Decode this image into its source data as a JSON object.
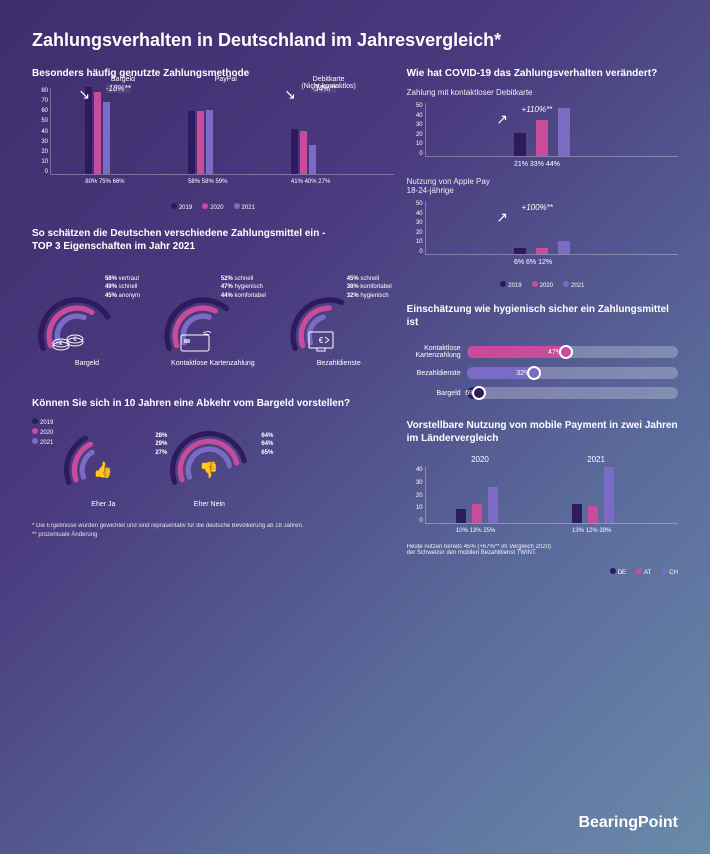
{
  "colors": {
    "c2019": "#2d1b5e",
    "c2020": "#c94b9b",
    "c2021": "#7a6bc4",
    "track": "#d0d0d8"
  },
  "header": "Zahlungsverhalten in Deutschland im Jahresvergleich*",
  "s1": {
    "title": "Besonders häufig genutzte Zahlungsmethode",
    "cats": [
      "Bargeld",
      "PayPal",
      "Debitkarte\n(Nicht-kontaktlos)"
    ],
    "ymax": 80,
    "ystep": 10,
    "data": [
      [
        80,
        75,
        66
      ],
      [
        58,
        58,
        59
      ],
      [
        41,
        40,
        27
      ]
    ],
    "changes": [
      "-18%**",
      "",
      "-34%**"
    ]
  },
  "legend": {
    "y2019": "2019",
    "y2020": "2020",
    "y2021": "2021"
  },
  "s2": {
    "title": "So schätzen die Deutschen verschiedene Zahlungsmittel ein -\nTOP 3 Eigenschaften im Jahr 2021",
    "items": [
      {
        "name": "Bargeld",
        "props": [
          {
            "v": 58,
            "t": "vertraut"
          },
          {
            "v": 49,
            "t": "schnell"
          },
          {
            "v": 45,
            "t": "anonym"
          }
        ],
        "icon": "coins"
      },
      {
        "name": "Kontaktlose Kartenzahlung",
        "props": [
          {
            "v": 52,
            "t": "schnell"
          },
          {
            "v": 47,
            "t": "hygienisch"
          },
          {
            "v": 44,
            "t": "komfortabel"
          }
        ],
        "icon": "card"
      },
      {
        "name": "Bezahldienste",
        "props": [
          {
            "v": 45,
            "t": "schnell"
          },
          {
            "v": 38,
            "t": "komfortabel"
          },
          {
            "v": 32,
            "t": "hygienisch"
          }
        ],
        "icon": "monitor"
      }
    ]
  },
  "s3": {
    "title": "Wie hat COVID-19 das Zahlungsverhalten verändert?",
    "sub1": "Zahlung mit kontaktloser Debitkarte",
    "c1": {
      "ymax": 50,
      "ystep": 10,
      "vals": [
        21,
        33,
        44
      ],
      "change": "+110%**"
    },
    "sub2": "Nutzung von Apple Pay\n18-24-jährige",
    "c2": {
      "ymax": 50,
      "ystep": 10,
      "vals": [
        6,
        6,
        12
      ],
      "change": "+100%**"
    }
  },
  "s4": {
    "title": "Einschätzung wie hygienisch sicher ein Zahlungsmittel ist",
    "rows": [
      {
        "label": "Kontaktlose\nKartenzahlung",
        "v": 47,
        "color": "#c94b9b"
      },
      {
        "label": "Bezahldienste",
        "v": 32,
        "color": "#7a6bc4"
      },
      {
        "label": "Bargeld",
        "v": 6,
        "color": "#2d1b5e"
      }
    ]
  },
  "s5": {
    "title": "Können Sie sich in 10 Jahren eine Abkehr vom Bargeld vorstellen?",
    "ja": {
      "name": "Eher Ja",
      "vals": [
        28,
        29,
        27
      ]
    },
    "nein": {
      "name": "Eher Nein",
      "vals": [
        64,
        64,
        65
      ]
    }
  },
  "s6": {
    "title": "Vorstellbare Nutzung von mobile Payment in zwei Jahren im Ländervergleich",
    "ymax": 40,
    "ystep": 10,
    "y2020": [
      10,
      13,
      25
    ],
    "y2021": [
      13,
      12,
      39
    ],
    "countries": [
      "DE",
      "AT",
      "CH"
    ],
    "note": "Heute nutzen bereits 45% (+67%** im Vergleich 2020)\nder Schweizer den mobilen Bezahldienst TWINT."
  },
  "foot1": "* Die Ergebnisse wurden gewichtet und sind repräsentativ für die deutsche Bevölkerung ab 18 Jahren.",
  "foot2": "** prozentuale Änderung",
  "brand": "BearingPoint"
}
